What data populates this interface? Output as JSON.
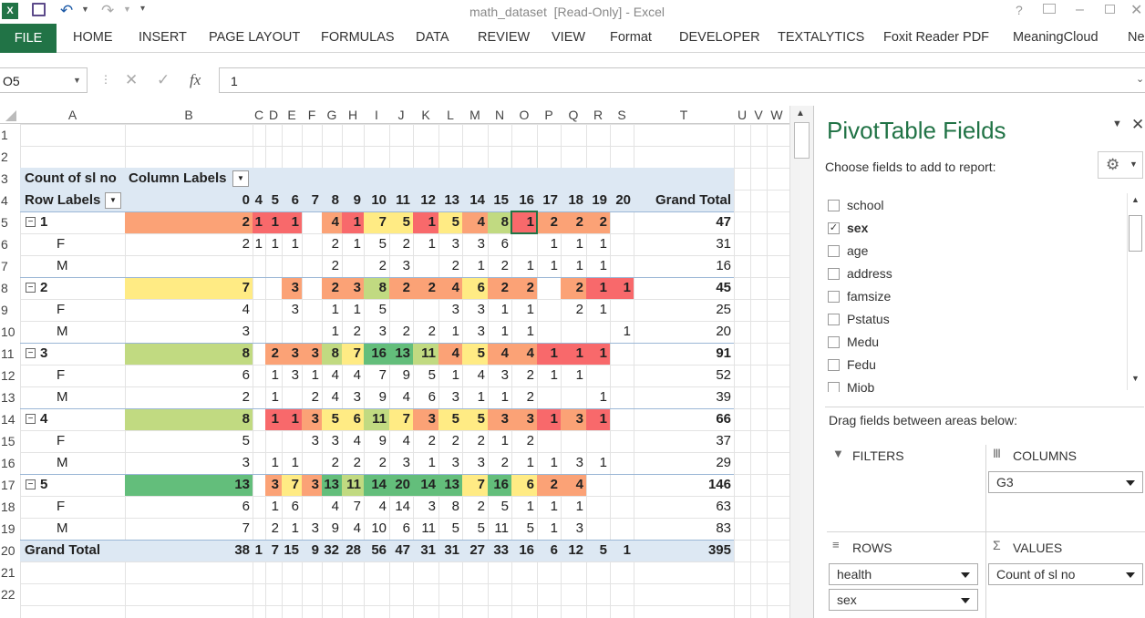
{
  "window": {
    "title": "math_dataset  [Read-Only] - Excel",
    "help": "?"
  },
  "ribbon": {
    "file": "FILE",
    "tabs": [
      "HOME",
      "INSERT",
      "PAGE LAYOUT",
      "FORMULAS",
      "DATA",
      "REVIEW",
      "VIEW",
      "Format",
      "DEVELOPER",
      "TEXTALYTICS",
      "Foxit Reader PDF",
      "MeaningCloud",
      "Ne"
    ]
  },
  "formula": {
    "name_box": "O5",
    "fx": "fx",
    "value": "1"
  },
  "columns": [
    "A",
    "B",
    "C",
    "D",
    "E",
    "F",
    "G",
    "H",
    "I",
    "J",
    "K",
    "L",
    "M",
    "N",
    "O",
    "P",
    "Q",
    "R",
    "S",
    "T",
    "U",
    "V",
    "W"
  ],
  "rows": [
    "1",
    "2",
    "3",
    "4",
    "5",
    "6",
    "7",
    "8",
    "9",
    "10",
    "11",
    "12",
    "13",
    "14",
    "15",
    "16",
    "17",
    "18",
    "19",
    "20",
    "21",
    "22"
  ],
  "pivot": {
    "value_label": "Count of sl no",
    "col_labels": "Column Labels",
    "row_labels": "Row Labels",
    "col_headers": [
      "0",
      "4",
      "5",
      "6",
      "7",
      "8",
      "9",
      "10",
      "11",
      "12",
      "13",
      "14",
      "15",
      "16",
      "17",
      "18",
      "19",
      "20",
      "Grand Total"
    ],
    "data": [
      {
        "label": "1",
        "type": "group",
        "cells": [
          "2",
          "1",
          "1",
          "1",
          "",
          "4",
          "1",
          "7",
          "5",
          "1",
          "5",
          "4",
          "8",
          "1",
          "2",
          "2",
          "2",
          "",
          "47"
        ]
      },
      {
        "label": "F",
        "type": "sub",
        "cells": [
          "2",
          "1",
          "1",
          "1",
          "",
          "2",
          "1",
          "5",
          "2",
          "1",
          "3",
          "3",
          "6",
          "",
          "1",
          "1",
          "1",
          "",
          "31"
        ]
      },
      {
        "label": "M",
        "type": "sub",
        "cells": [
          "",
          "",
          "",
          "",
          "",
          "2",
          "",
          "2",
          "3",
          "",
          "2",
          "1",
          "2",
          "1",
          "1",
          "1",
          "1",
          "",
          "16"
        ]
      },
      {
        "label": "2",
        "type": "group",
        "cells": [
          "7",
          "",
          "",
          "3",
          "",
          "2",
          "3",
          "8",
          "2",
          "2",
          "4",
          "6",
          "2",
          "2",
          "",
          "2",
          "1",
          "1",
          "45"
        ]
      },
      {
        "label": "F",
        "type": "sub",
        "cells": [
          "4",
          "",
          "",
          "3",
          "",
          "1",
          "1",
          "5",
          "",
          "",
          "3",
          "3",
          "1",
          "1",
          "",
          "2",
          "1",
          "",
          "25"
        ]
      },
      {
        "label": "M",
        "type": "sub",
        "cells": [
          "3",
          "",
          "",
          "",
          "",
          "1",
          "2",
          "3",
          "2",
          "2",
          "1",
          "3",
          "1",
          "1",
          "",
          "",
          "",
          "1",
          "20"
        ]
      },
      {
        "label": "3",
        "type": "group",
        "cells": [
          "8",
          "",
          "2",
          "3",
          "3",
          "8",
          "7",
          "16",
          "13",
          "11",
          "4",
          "5",
          "4",
          "4",
          "1",
          "1",
          "1",
          "",
          "91"
        ]
      },
      {
        "label": "F",
        "type": "sub",
        "cells": [
          "6",
          "",
          "1",
          "3",
          "1",
          "4",
          "4",
          "7",
          "9",
          "5",
          "1",
          "4",
          "3",
          "2",
          "1",
          "1",
          "",
          "",
          "52"
        ]
      },
      {
        "label": "M",
        "type": "sub",
        "cells": [
          "2",
          "",
          "1",
          "",
          "2",
          "4",
          "3",
          "9",
          "4",
          "6",
          "3",
          "1",
          "1",
          "2",
          "",
          "",
          "1",
          "",
          "39"
        ]
      },
      {
        "label": "4",
        "type": "group",
        "cells": [
          "8",
          "",
          "1",
          "1",
          "3",
          "5",
          "6",
          "11",
          "7",
          "3",
          "5",
          "5",
          "3",
          "3",
          "1",
          "3",
          "1",
          "",
          "66"
        ]
      },
      {
        "label": "F",
        "type": "sub",
        "cells": [
          "5",
          "",
          "",
          "",
          "3",
          "3",
          "4",
          "9",
          "4",
          "2",
          "2",
          "2",
          "1",
          "2",
          "",
          "",
          "",
          "",
          "37"
        ]
      },
      {
        "label": "M",
        "type": "sub",
        "cells": [
          "3",
          "",
          "1",
          "1",
          "",
          "2",
          "2",
          "2",
          "3",
          "1",
          "3",
          "3",
          "2",
          "1",
          "1",
          "3",
          "1",
          "",
          "29"
        ]
      },
      {
        "label": "5",
        "type": "group",
        "cells": [
          "13",
          "",
          "3",
          "7",
          "3",
          "13",
          "11",
          "14",
          "20",
          "14",
          "13",
          "7",
          "16",
          "6",
          "2",
          "4",
          "",
          "",
          "146"
        ]
      },
      {
        "label": "F",
        "type": "sub",
        "cells": [
          "6",
          "",
          "1",
          "6",
          "",
          "4",
          "7",
          "4",
          "14",
          "3",
          "8",
          "2",
          "5",
          "1",
          "1",
          "1",
          "",
          "",
          "63"
        ]
      },
      {
        "label": "M",
        "type": "sub",
        "cells": [
          "7",
          "",
          "2",
          "1",
          "3",
          "9",
          "4",
          "10",
          "6",
          "11",
          "5",
          "5",
          "11",
          "5",
          "1",
          "3",
          "",
          "",
          "83"
        ]
      }
    ],
    "grand_total_label": "Grand Total",
    "grand_total": [
      "38",
      "1",
      "7",
      "15",
      "9",
      "32",
      "28",
      "56",
      "47",
      "31",
      "31",
      "27",
      "33",
      "16",
      "6",
      "12",
      "5",
      "1",
      "395"
    ]
  },
  "panel": {
    "title": "PivotTable Fields",
    "choose": "Choose fields to add to report:",
    "fields": [
      {
        "name": "school",
        "checked": false
      },
      {
        "name": "sex",
        "checked": true
      },
      {
        "name": "age",
        "checked": false
      },
      {
        "name": "address",
        "checked": false
      },
      {
        "name": "famsize",
        "checked": false
      },
      {
        "name": "Pstatus",
        "checked": false
      },
      {
        "name": "Medu",
        "checked": false
      },
      {
        "name": "Fedu",
        "checked": false
      },
      {
        "name": "Mjob",
        "checked": false
      }
    ],
    "drag": "Drag fields between areas below:",
    "filters": "FILTERS",
    "columns": "COLUMNS",
    "rows": "ROWS",
    "values": "VALUES",
    "columns_field": "G3",
    "rows_fields": [
      "health",
      "sex"
    ],
    "values_field": "Count of sl no"
  },
  "colors": {
    "header_band": "#dde8f3",
    "file_tab": "#217346",
    "pane_title": "#217346",
    "red": "#f8696b",
    "orange": "#fba276",
    "yellow": "#ffeb84",
    "green": "#63be7b"
  }
}
